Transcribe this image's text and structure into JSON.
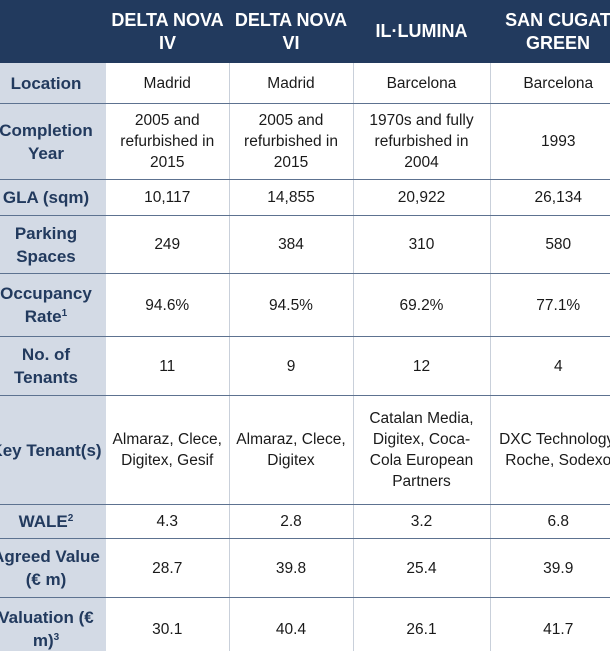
{
  "header": {
    "columns": [
      "DELTA NOVA IV",
      "DELTA NOVA VI",
      "IL·LUMINA",
      "SAN CUGAT GREEN"
    ]
  },
  "rows": [
    {
      "label": "Location",
      "cells": [
        "Madrid",
        "Madrid",
        "Barcelona",
        "Barcelona"
      ]
    },
    {
      "label": "Completion Year",
      "cells": [
        "2005 and refurbished in 2015",
        "2005 and refurbished in 2015",
        "1970s and fully refurbished in 2004",
        "1993"
      ]
    },
    {
      "label": "GLA (sqm)",
      "cells": [
        "10,117",
        "14,855",
        "20,922",
        "26,134"
      ]
    },
    {
      "label": "Parking Spaces",
      "cells": [
        "249",
        "384",
        "310",
        "580"
      ]
    },
    {
      "label": "Occupancy Rate",
      "sup": "1",
      "cells": [
        "94.6%",
        "94.5%",
        "69.2%",
        "77.1%"
      ]
    },
    {
      "label": "No. of Tenants",
      "cells": [
        "11",
        "9",
        "12",
        "4"
      ]
    },
    {
      "label": "Key Tenant(s)",
      "cells": [
        "Almaraz, Clece, Digitex, Gesif",
        "Almaraz, Clece, Digitex",
        "Catalan Media, Digitex, Coca-Cola European Partners",
        "DXC Technology, Roche, Sodexo"
      ]
    },
    {
      "label": "WALE",
      "sup": "2",
      "cells": [
        "4.3",
        "2.8",
        "3.2",
        "6.8"
      ]
    },
    {
      "label": "Agreed Value (€ m)",
      "cells": [
        "28.7",
        "39.8",
        "25.4",
        "39.9"
      ]
    },
    {
      "label": "Valuation (€ m)",
      "sup": "3",
      "cells": [
        "30.1",
        "40.4",
        "26.1",
        "41.7"
      ]
    }
  ],
  "colors": {
    "header_bg": "#223a5e",
    "row_header_bg": "#d3dae5",
    "row_header_text": "#223a5e",
    "divider": "#5d7290"
  }
}
